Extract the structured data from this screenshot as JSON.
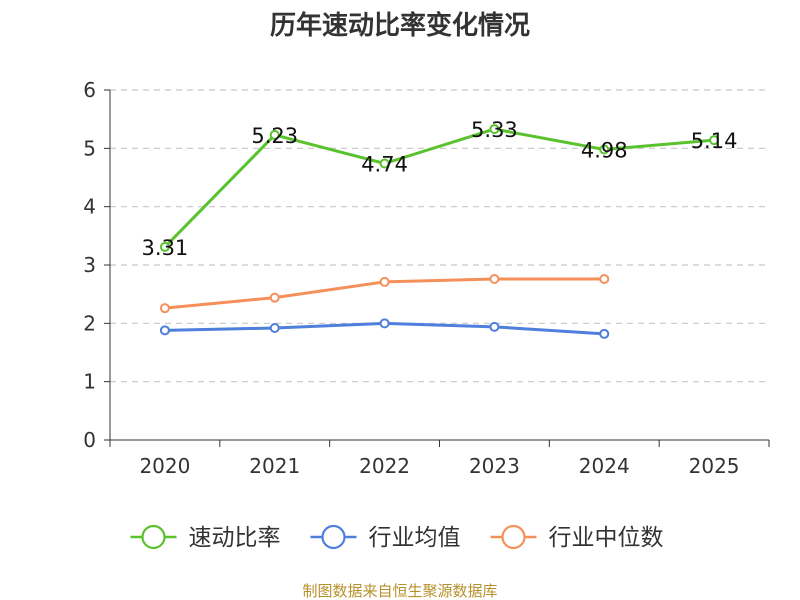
{
  "chart_data": {
    "type": "line",
    "title": "历年速动比率变化情况",
    "categories": [
      "2020",
      "2021",
      "2022",
      "2023",
      "2024",
      "2025"
    ],
    "ylim": [
      0,
      6
    ],
    "yticks": [
      0,
      1,
      2,
      3,
      4,
      5,
      6
    ],
    "grid": true,
    "legend_position": "bottom",
    "series": [
      {
        "name": "速动比率",
        "color": "#5bc22f",
        "values": [
          3.31,
          5.23,
          4.74,
          5.33,
          4.98,
          5.14
        ],
        "labels": [
          "3.31",
          "5.23",
          "4.74",
          "5.33",
          "4.98",
          "5.14"
        ]
      },
      {
        "name": "行业均值",
        "color": "#4e7fdc",
        "values": [
          1.88,
          1.92,
          2.0,
          1.94,
          1.82,
          null
        ]
      },
      {
        "name": "行业中位数",
        "color": "#f5905a",
        "values": [
          2.26,
          2.44,
          2.71,
          2.76,
          2.76,
          null
        ]
      }
    ],
    "source": "制图数据来自恒生聚源数据库"
  }
}
